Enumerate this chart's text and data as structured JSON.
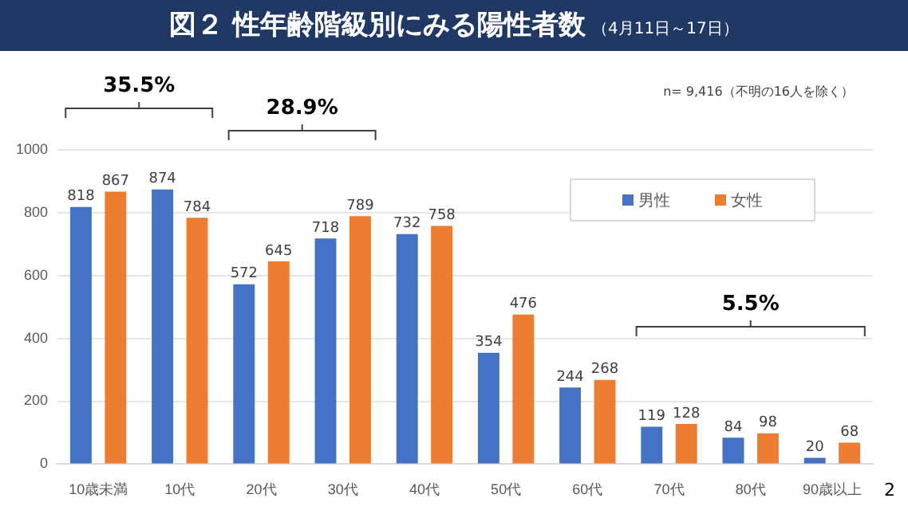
{
  "chart_data": {
    "type": "bar",
    "title": "図２ 性年齢階級別にみる陽性者数",
    "subtitle": "（4月11日～17日）",
    "categories": [
      "10歳未満",
      "10代",
      "20代",
      "30代",
      "40代",
      "50代",
      "60代",
      "70代",
      "80代",
      "90歳以上"
    ],
    "series": [
      {
        "name": "男性",
        "color": "#4472c4",
        "values": [
          818,
          874,
          572,
          718,
          732,
          354,
          244,
          119,
          84,
          20
        ]
      },
      {
        "name": "女性",
        "color": "#ed7d31",
        "values": [
          867,
          784,
          645,
          789,
          758,
          476,
          268,
          128,
          98,
          68
        ]
      }
    ],
    "ylim": [
      0,
      1000
    ],
    "yticks": [
      0,
      200,
      400,
      600,
      800,
      1000
    ],
    "grid": "y",
    "legend": "top right",
    "data_labels": true,
    "annotations": [
      "n= 9,416（不明の16人を除く）",
      "35.5%",
      "28.9%",
      "5.5%",
      "2"
    ]
  }
}
